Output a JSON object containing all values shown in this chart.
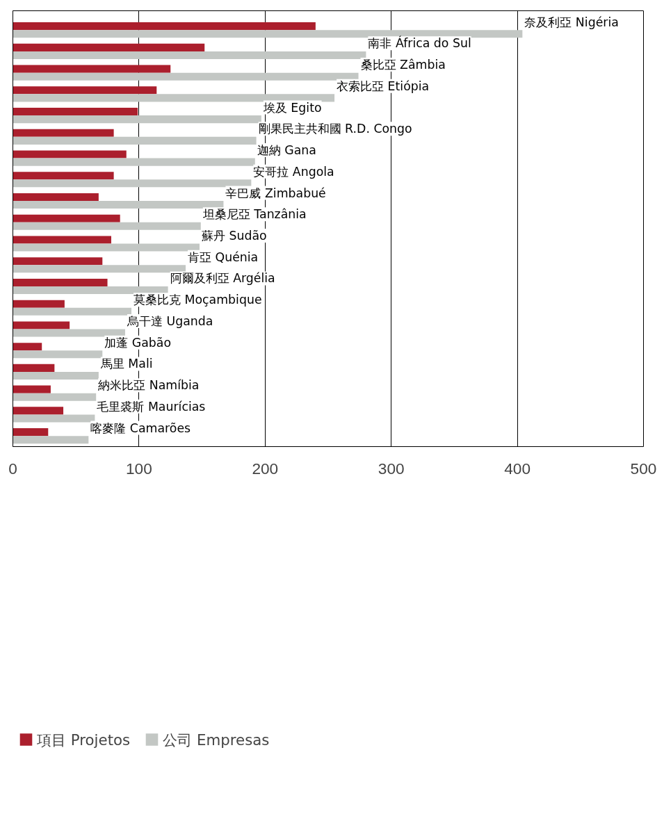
{
  "chart_data": {
    "type": "bar",
    "orientation": "horizontal",
    "categories": [
      "奈及利亞 Nigéria",
      "南非 África do Sul",
      "桑比亞 Zâmbia",
      "衣索比亞 Etiópia",
      "埃及 Egito",
      "剛果民主共和國 R.D. Congo",
      "迦納 Gana",
      "安哥拉 Angola",
      "辛巴威 Zimbabué",
      "坦桑尼亞 Tanzânia",
      "蘇丹 Sudão",
      "肯亞 Quénia",
      "阿爾及利亞 Argélia",
      "莫桑比克 Moçambique",
      "烏干達 Uganda",
      "加蓬 Gabão",
      "馬里 Mali",
      "納米比亞 Namíbia",
      "毛里裘斯 Maurícias",
      "喀麥隆 Camarões"
    ],
    "series": [
      {
        "name": "項目 Projetos",
        "color": "#ab1f2d",
        "values": [
          240,
          152,
          125,
          114,
          99,
          80,
          90,
          80,
          68,
          85,
          78,
          71,
          75,
          41,
          45,
          23,
          33,
          30,
          40,
          28
        ]
      },
      {
        "name": "公司 Empresas",
        "color": "#c3c7c4",
        "values": [
          404,
          280,
          274,
          255,
          197,
          193,
          192,
          189,
          167,
          149,
          148,
          137,
          123,
          94,
          89,
          71,
          68,
          66,
          65,
          60
        ]
      }
    ],
    "xlim": [
      0,
      500
    ],
    "xticks": [
      0,
      100,
      200,
      300,
      400,
      500
    ],
    "grid": "x",
    "legend": "bottom left",
    "tick_labels": "x"
  }
}
